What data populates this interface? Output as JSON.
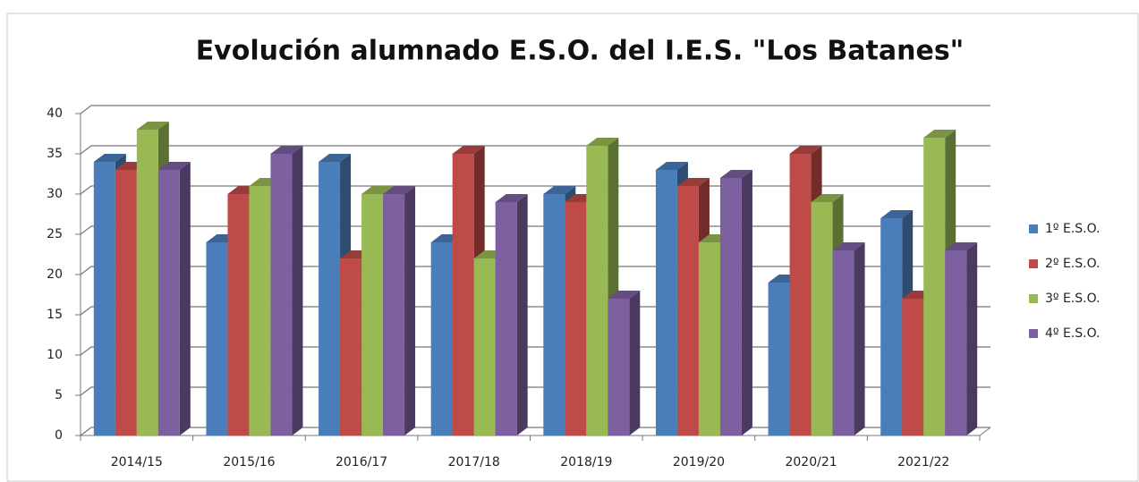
{
  "chart_data": {
    "type": "bar3d",
    "title": "Evolución alumnado E.S.O. del I.E.S. \"Los Batanes\"",
    "categories": [
      "2014/15",
      "2015/16",
      "2016/17",
      "2017/18",
      "2018/19",
      "2019/20",
      "2020/21",
      "2021/22"
    ],
    "series": [
      {
        "name": "1º E.S.O.",
        "color": "#4a7ebb",
        "values": [
          34,
          24,
          34,
          24,
          30,
          33,
          19,
          27
        ]
      },
      {
        "name": "2º E.S.O.",
        "color": "#be4b48",
        "values": [
          33,
          30,
          22,
          35,
          29,
          31,
          35,
          17
        ]
      },
      {
        "name": "3º E.S.O.",
        "color": "#98b954",
        "values": [
          38,
          31,
          30,
          22,
          36,
          24,
          29,
          37
        ]
      },
      {
        "name": "4º E.S.O.",
        "color": "#7d60a0",
        "values": [
          33,
          35,
          30,
          29,
          17,
          32,
          23,
          23
        ]
      }
    ],
    "ylim": [
      0,
      40
    ],
    "yticks": [
      0,
      5,
      10,
      15,
      20,
      25,
      30,
      35,
      40
    ],
    "grid": true,
    "legend": "right"
  }
}
